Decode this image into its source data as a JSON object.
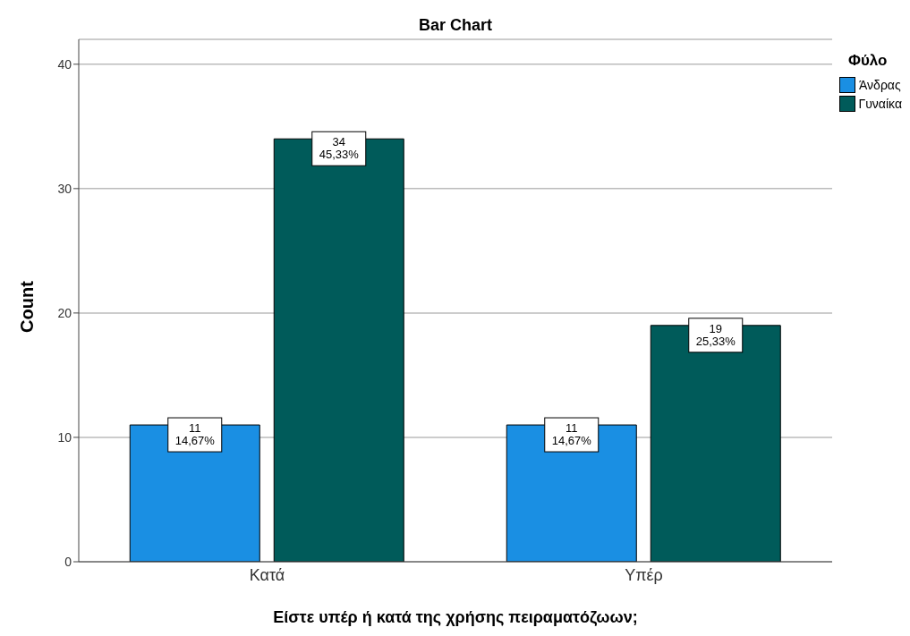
{
  "chart_data": {
    "type": "bar",
    "title": "Bar Chart",
    "xlabel": "Είστε υπέρ ή κατά της χρήσης πειραματόζωων;",
    "ylabel": "Count",
    "legend_title": "Φύλο",
    "categories": [
      "Κατά",
      "Υπέρ"
    ],
    "series": [
      {
        "name": "Άνδρας",
        "color": "#1a8fe3",
        "values": [
          11,
          11
        ],
        "value_labels": [
          "11\n14,67%",
          "11\n14,67%"
        ]
      },
      {
        "name": "Γυναίκα",
        "color": "#005b5a",
        "values": [
          34,
          19
        ],
        "value_labels": [
          "34\n45,33%",
          "19\n25,33%"
        ]
      }
    ],
    "ylim": [
      0,
      42
    ],
    "yticks": [
      0,
      10,
      20,
      30,
      40
    ],
    "grid": "y",
    "legend": "top right"
  }
}
